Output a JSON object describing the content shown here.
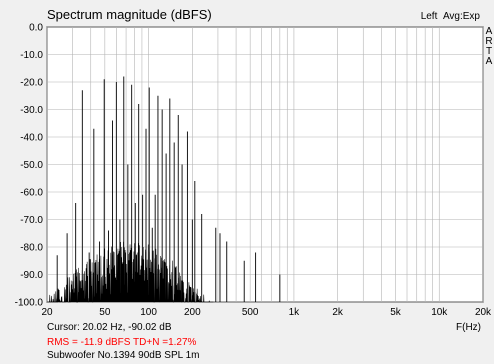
{
  "chart_data": {
    "type": "line",
    "title": "Spectrum magnitude (dBFS)",
    "channel": "Left",
    "averaging": "Avg:Exp",
    "watermark": "ARTA",
    "xlabel": "F(Hz)",
    "ylabel": "",
    "x_scale": "log",
    "xlim": [
      20,
      20000
    ],
    "ylim": [
      -100,
      0
    ],
    "x_ticks": [
      {
        "value": 20,
        "label": "20"
      },
      {
        "value": 50,
        "label": "50"
      },
      {
        "value": 100,
        "label": "100"
      },
      {
        "value": 200,
        "label": "200"
      },
      {
        "value": 500,
        "label": "500"
      },
      {
        "value": 1000,
        "label": "1k"
      },
      {
        "value": 2000,
        "label": "2k"
      },
      {
        "value": 5000,
        "label": "5k"
      },
      {
        "value": 10000,
        "label": "10k"
      },
      {
        "value": 20000,
        "label": "20k"
      }
    ],
    "y_ticks": [
      {
        "value": 0,
        "label": "0.0"
      },
      {
        "value": -10,
        "label": "-10.0"
      },
      {
        "value": -20,
        "label": "-20.0"
      },
      {
        "value": -30,
        "label": "-30.0"
      },
      {
        "value": -40,
        "label": "-40.0"
      },
      {
        "value": -50,
        "label": "-50.0"
      },
      {
        "value": -60,
        "label": "-60.0"
      },
      {
        "value": -70,
        "label": "-70.0"
      },
      {
        "value": -80,
        "label": "-80.0"
      },
      {
        "value": -90,
        "label": "-90.0"
      },
      {
        "value": -100,
        "label": "-100.0"
      }
    ],
    "grid": true,
    "series": [
      {
        "peaks": [
          {
            "f": 23.5,
            "db": -83
          },
          {
            "f": 27.5,
            "db": -75
          },
          {
            "f": 31.5,
            "db": -64
          },
          {
            "f": 35,
            "db": -23
          },
          {
            "f": 39,
            "db": -82
          },
          {
            "f": 42,
            "db": -37
          },
          {
            "f": 46,
            "db": -78
          },
          {
            "f": 49.5,
            "db": -19
          },
          {
            "f": 53,
            "db": -74
          },
          {
            "f": 56.5,
            "db": -34
          },
          {
            "f": 60,
            "db": -20
          },
          {
            "f": 63.5,
            "db": -70
          },
          {
            "f": 67.5,
            "db": -18
          },
          {
            "f": 72,
            "db": -50
          },
          {
            "f": 76.5,
            "db": -21
          },
          {
            "f": 81,
            "db": -64
          },
          {
            "f": 85.5,
            "db": -28
          },
          {
            "f": 91,
            "db": -61
          },
          {
            "f": 96,
            "db": -37
          },
          {
            "f": 101,
            "db": -22
          },
          {
            "f": 106,
            "db": -73
          },
          {
            "f": 111,
            "db": -61
          },
          {
            "f": 116,
            "db": -25
          },
          {
            "f": 124,
            "db": -30
          },
          {
            "f": 132,
            "db": -46
          },
          {
            "f": 140,
            "db": -26
          },
          {
            "f": 150,
            "db": -42
          },
          {
            "f": 160,
            "db": -32
          },
          {
            "f": 170,
            "db": -50
          },
          {
            "f": 185,
            "db": -38
          },
          {
            "f": 200,
            "db": -70
          },
          {
            "f": 208,
            "db": -56
          },
          {
            "f": 232,
            "db": -68
          },
          {
            "f": 290,
            "db": -73
          },
          {
            "f": 310,
            "db": -75
          },
          {
            "f": 345,
            "db": -78
          },
          {
            "f": 455,
            "db": -85
          },
          {
            "f": 545,
            "db": -82
          },
          {
            "f": 800,
            "db": -90
          }
        ],
        "noise_envelope": [
          {
            "f": 20,
            "db": -98
          },
          {
            "f": 25,
            "db": -94
          },
          {
            "f": 30,
            "db": -90
          },
          {
            "f": 38,
            "db": -85
          },
          {
            "f": 50,
            "db": -82
          },
          {
            "f": 65,
            "db": -79
          },
          {
            "f": 80,
            "db": -78
          },
          {
            "f": 100,
            "db": -80
          },
          {
            "f": 130,
            "db": -84
          },
          {
            "f": 160,
            "db": -88
          },
          {
            "f": 200,
            "db": -94
          },
          {
            "f": 240,
            "db": -98
          },
          {
            "f": 280,
            "db": -100
          }
        ]
      }
    ]
  },
  "readouts": {
    "cursor": "Cursor: 20.02 Hz, -90.02 dB",
    "rms": "RMS = -11.9 dBFS  TD+N =1.27%",
    "note": "Subwoofer No.1394 90dB SPL 1m"
  },
  "colors": {
    "background": "#f0f0f0",
    "plot_area": "#ffffff",
    "grid": "#b4b4b4",
    "trace": "#000000",
    "rms_text": "#ff0000"
  }
}
